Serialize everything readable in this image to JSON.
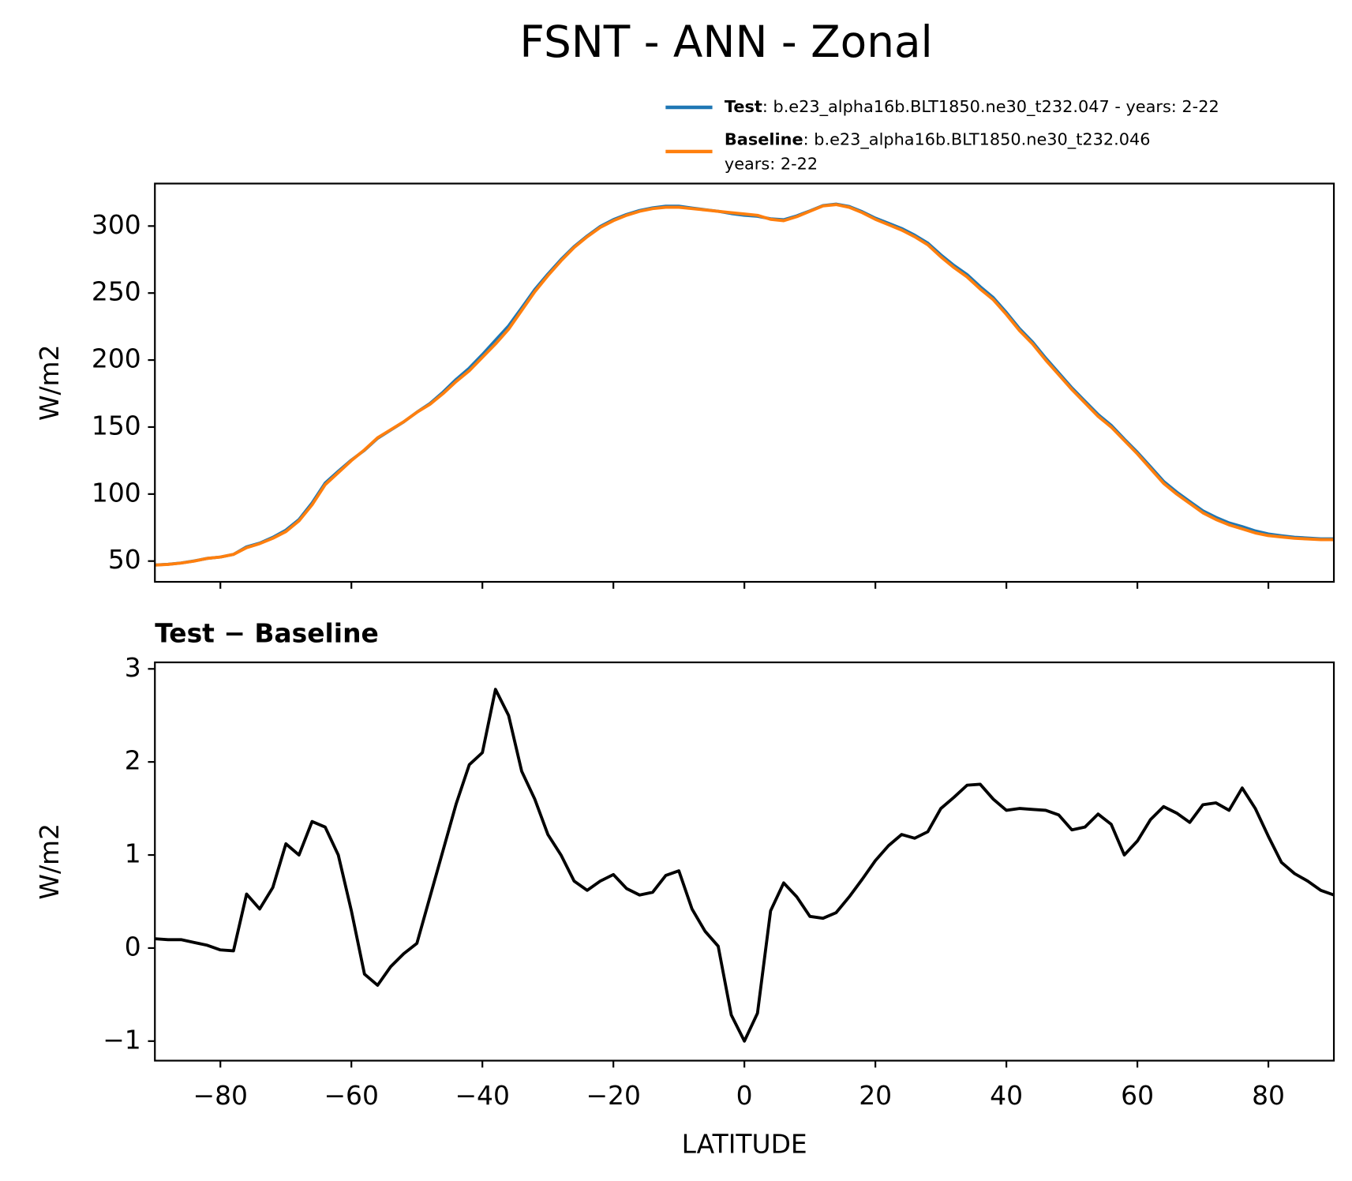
{
  "title": "FSNT - ANN - Zonal",
  "chart_data": [
    {
      "type": "line",
      "ylabel": "W/m2",
      "x": [
        -90,
        -88,
        -86,
        -84,
        -82,
        -80,
        -78,
        -76,
        -74,
        -72,
        -70,
        -68,
        -66,
        -64,
        -62,
        -60,
        -58,
        -56,
        -54,
        -52,
        -50,
        -48,
        -46,
        -44,
        -42,
        -40,
        -38,
        -36,
        -34,
        -32,
        -30,
        -28,
        -26,
        -24,
        -22,
        -20,
        -18,
        -16,
        -14,
        -12,
        -10,
        -8,
        -6,
        -4,
        -2,
        0,
        2,
        4,
        6,
        8,
        10,
        12,
        14,
        16,
        18,
        20,
        22,
        24,
        26,
        28,
        30,
        32,
        34,
        36,
        38,
        40,
        42,
        44,
        46,
        48,
        50,
        52,
        54,
        56,
        58,
        60,
        62,
        64,
        66,
        68,
        70,
        72,
        74,
        76,
        78,
        80,
        82,
        84,
        86,
        88,
        90
      ],
      "series": [
        {
          "name": "Test",
          "label_lines": [
            ": b.e23_alpha16b.BLT1850.ne30_t232.047 - years: 2-22"
          ],
          "color": "#1f77b4",
          "values": [
            47.1,
            47.6,
            48.6,
            50.1,
            52.0,
            53.0,
            55.0,
            60.6,
            63.4,
            67.7,
            73.1,
            81.0,
            93.4,
            108.3,
            117.0,
            125.4,
            132.7,
            141.6,
            147.8,
            153.9,
            161.1,
            167.6,
            176.1,
            185.6,
            194.0,
            204.1,
            214.8,
            225.5,
            238.9,
            252.6,
            264.2,
            275.0,
            284.7,
            292.6,
            299.7,
            304.8,
            308.6,
            311.6,
            313.6,
            314.8,
            314.8,
            313.4,
            312.2,
            311.0,
            309.3,
            308.0,
            307.3,
            305.4,
            304.7,
            307.6,
            311.3,
            315.3,
            316.4,
            314.6,
            310.7,
            305.9,
            302.1,
            298.2,
            293.2,
            287.3,
            278.5,
            270.6,
            263.8,
            254.8,
            246.6,
            235.5,
            223.5,
            213.5,
            201.5,
            190.4,
            179.3,
            169.3,
            159.4,
            151.3,
            141.0,
            131.2,
            120.4,
            109.5,
            101.5,
            94.4,
            87.5,
            82.6,
            78.5,
            75.7,
            72.5,
            70.2,
            68.9,
            67.8,
            67.2,
            66.6,
            66.6
          ]
        },
        {
          "name": "Baseline",
          "label_lines": [
            ": b.e23_alpha16b.BLT1850.ne30_t232.046",
            "years: 2-22"
          ],
          "color": "#ff7f0e",
          "values": [
            47,
            47.5,
            48.5,
            50,
            52,
            53,
            55,
            60,
            63,
            67,
            72,
            80,
            92,
            107,
            116,
            125,
            133,
            142,
            148,
            154,
            161,
            167,
            175,
            184,
            192,
            202,
            212,
            223,
            237,
            251,
            263,
            274,
            284,
            292,
            299,
            304,
            308,
            311,
            313,
            314,
            314,
            313,
            312,
            311,
            310,
            309,
            308,
            305,
            304,
            307,
            311,
            315,
            316,
            314,
            310,
            305,
            301,
            297,
            292,
            286,
            277,
            269,
            262,
            253,
            245,
            234,
            222,
            212,
            200,
            189,
            178,
            168,
            158,
            150,
            140,
            130,
            119,
            108,
            100,
            93,
            86,
            81,
            77,
            74,
            71,
            69,
            68,
            67,
            66.5,
            66,
            66
          ]
        }
      ],
      "xlim": [
        -90,
        90
      ],
      "xticks": [
        -80,
        -60,
        -40,
        -20,
        0,
        20,
        40,
        60,
        80
      ],
      "ylim": [
        34.5,
        331.7
      ],
      "yticks": [
        50,
        100,
        150,
        200,
        250,
        300
      ]
    },
    {
      "type": "line",
      "title": "Test − Baseline",
      "ylabel": "W/m2",
      "xlabel": "LATITUDE",
      "x": [
        -90,
        -88,
        -86,
        -84,
        -82,
        -80,
        -78,
        -76,
        -74,
        -72,
        -70,
        -68,
        -66,
        -64,
        -62,
        -60,
        -58,
        -56,
        -54,
        -52,
        -50,
        -48,
        -46,
        -44,
        -42,
        -40,
        -38,
        -36,
        -34,
        -32,
        -30,
        -28,
        -26,
        -24,
        -22,
        -20,
        -18,
        -16,
        -14,
        -12,
        -10,
        -8,
        -6,
        -4,
        -2,
        0,
        2,
        4,
        6,
        8,
        10,
        12,
        14,
        16,
        18,
        20,
        22,
        24,
        26,
        28,
        30,
        32,
        34,
        36,
        38,
        40,
        42,
        44,
        46,
        48,
        50,
        52,
        54,
        56,
        58,
        60,
        62,
        64,
        66,
        68,
        70,
        72,
        74,
        76,
        78,
        80,
        82,
        84,
        86,
        88,
        90
      ],
      "series": [
        {
          "color": "#000000",
          "values": [
            0.1,
            0.09,
            0.09,
            0.06,
            0.03,
            -0.02,
            -0.03,
            0.58,
            0.42,
            0.65,
            1.12,
            1.0,
            1.36,
            1.3,
            1.0,
            0.4,
            -0.28,
            -0.4,
            -0.2,
            -0.06,
            0.05,
            0.55,
            1.05,
            1.55,
            1.97,
            2.1,
            2.78,
            2.5,
            1.9,
            1.6,
            1.22,
            1.0,
            0.72,
            0.62,
            0.72,
            0.79,
            0.64,
            0.57,
            0.6,
            0.78,
            0.83,
            0.42,
            0.18,
            0.02,
            -0.72,
            -1.0,
            -0.7,
            0.4,
            0.7,
            0.55,
            0.34,
            0.32,
            0.38,
            0.55,
            0.74,
            0.94,
            1.1,
            1.22,
            1.18,
            1.25,
            1.5,
            1.62,
            1.75,
            1.76,
            1.6,
            1.48,
            1.5,
            1.49,
            1.48,
            1.43,
            1.27,
            1.3,
            1.44,
            1.33,
            1.0,
            1.15,
            1.38,
            1.52,
            1.45,
            1.35,
            1.54,
            1.56,
            1.48,
            1.72,
            1.5,
            1.2,
            0.92,
            0.8,
            0.72,
            0.62,
            0.57
          ]
        }
      ],
      "xlim": [
        -90,
        90
      ],
      "xticks": [
        {
          "value": -80,
          "label": "−80"
        },
        {
          "value": -60,
          "label": "−60"
        },
        {
          "value": -40,
          "label": "−40"
        },
        {
          "value": -20,
          "label": "−20"
        },
        0,
        20,
        40,
        60,
        80
      ],
      "ylim": [
        -1.21,
        3.07
      ],
      "yticks": [
        {
          "value": -1,
          "label": "−1"
        },
        0,
        1,
        2,
        3
      ]
    }
  ]
}
